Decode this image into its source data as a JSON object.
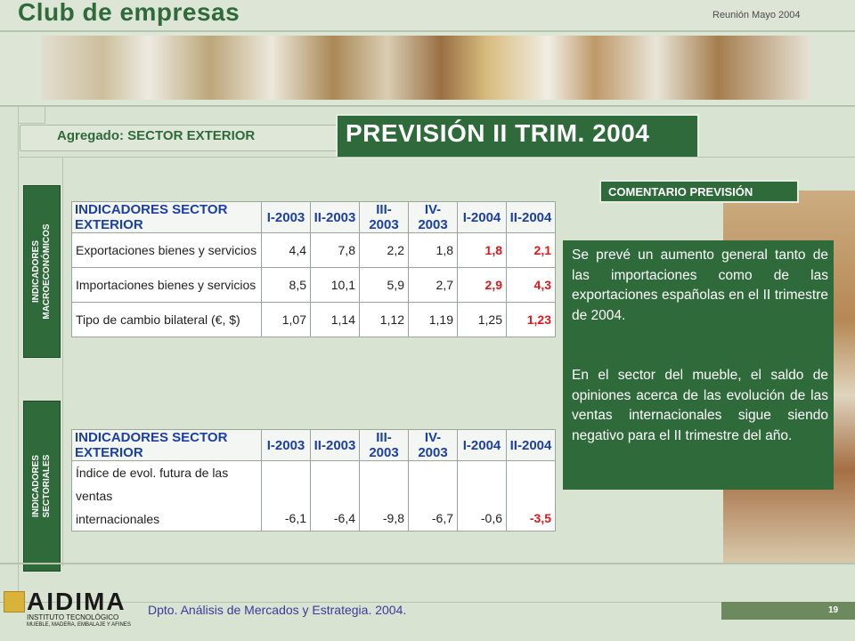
{
  "header": {
    "brand": "Club de empresas",
    "meeting": "Reunión Mayo 2004"
  },
  "section": {
    "label": "Agregado: SECTOR EXTERIOR",
    "forecast_title": "PREVISIÓN II TRIM. 2004"
  },
  "side_labels": {
    "macro": "INDICADORES\nMACROECONÓMICOS",
    "sector": "INDICADORES\nSECTORIALES"
  },
  "table_macro": {
    "headers": [
      "INDICADORES SECTOR EXTERIOR",
      "I-2003",
      "II-2003",
      "III-2003",
      "IV-2003",
      "I-2004",
      "II-2004"
    ],
    "rows": [
      {
        "label": "Exportaciones bienes y servicios",
        "values": [
          "4,4",
          "7,8",
          "2,2",
          "1,8",
          "1,8",
          "2,1"
        ]
      },
      {
        "label": "Importaciones bienes y servicios",
        "values": [
          "8,5",
          "10,1",
          "5,9",
          "2,7",
          "2,9",
          "4,3"
        ]
      },
      {
        "label": "Tipo de cambio bilateral (€, $)",
        "values": [
          "1,07",
          "1,14",
          "1,12",
          "1,19",
          "1,25",
          "1,23"
        ]
      }
    ]
  },
  "table_sector": {
    "headers": [
      "INDICADORES SECTOR EXTERIOR",
      "I-2003",
      "II-2003",
      "III-2003",
      "IV-2003",
      "I-2004",
      "II-2004"
    ],
    "rows": [
      {
        "label_line1": "Índice de evol. futura de las ventas",
        "label_line2": "internacionales",
        "values": [
          "-6,1",
          "-6,4",
          "-9,8",
          "-6,7",
          "-0,6",
          "-3,5"
        ]
      }
    ]
  },
  "comment": {
    "tag": "COMENTARIO PREVISIÓN",
    "paragraph1": "Se prevé un aumento general tanto de las importaciones como de las exportaciones españolas en el II trimestre de 2004.",
    "paragraph2": "En el sector del mueble, el saldo de opiniones acerca de las evolución de las ventas internacionales sigue siendo negativo para el II trimestre del año."
  },
  "footer": {
    "logo": "AIDIMA",
    "logo_sub1": "INSTITUTO TECNOLÓGICO",
    "logo_sub2": "MUEBLE, MADERA, EMBALAJE Y AFINES",
    "department": "Dpto. Análisis de Mercados y Estrategia. 2004.",
    "page": "19"
  },
  "colors": {
    "brand_green": "#2f6a3a",
    "highlight_red": "#e0171a",
    "header_blue": "#1a3fa5"
  }
}
